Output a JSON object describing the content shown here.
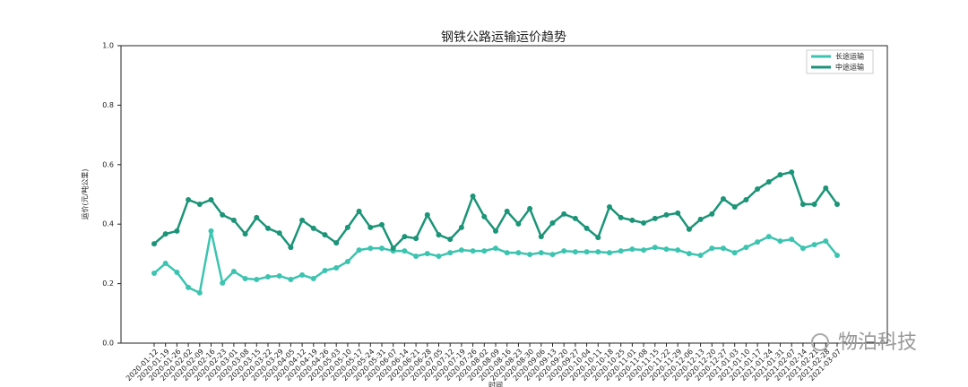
{
  "chart_data": {
    "type": "line",
    "title": "钢铁公路运输运价趋势",
    "xlabel": "时间",
    "ylabel": "运价(元/吨公里)",
    "categories": [
      "2020-01-12",
      "2020-01-19",
      "2020-01-26",
      "2020-02-02",
      "2020-02-09",
      "2020-02-16",
      "2020-02-23",
      "2020-03-01",
      "2020-03-08",
      "2020-03-15",
      "2020-03-22",
      "2020-03-29",
      "2020-04-05",
      "2020-04-12",
      "2020-04-19",
      "2020-04-26",
      "2020-05-03",
      "2020-05-10",
      "2020-05-17",
      "2020-05-24",
      "2020-05-31",
      "2020-06-07",
      "2020-06-14",
      "2020-06-21",
      "2020-06-28",
      "2020-07-05",
      "2020-07-12",
      "2020-07-19",
      "2020-07-26",
      "2020-08-02",
      "2020-08-09",
      "2020-08-16",
      "2020-08-23",
      "2020-08-30",
      "2020-09-06",
      "2020-09-13",
      "2020-09-20",
      "2020-09-27",
      "2020-10-04",
      "2020-10-11",
      "2020-10-18",
      "2020-10-25",
      "2020-11-01",
      "2020-11-08",
      "2020-11-15",
      "2020-11-22",
      "2020-11-29",
      "2020-12-06",
      "2020-12-13",
      "2020-12-20",
      "2020-12-27",
      "2021-01-03",
      "2021-01-10",
      "2021-01-17",
      "2021-01-24",
      "2021-01-31",
      "2021-02-07",
      "2021-02-14",
      "2021-02-21",
      "2021-02-28",
      "2021-03-07"
    ],
    "series": [
      {
        "name": "长途运输",
        "color": "#3cc4b0",
        "values": [
          0.235,
          0.268,
          0.238,
          0.187,
          0.169,
          0.377,
          0.202,
          0.241,
          0.217,
          0.214,
          0.223,
          0.226,
          0.214,
          0.229,
          0.217,
          0.244,
          0.253,
          0.274,
          0.313,
          0.319,
          0.319,
          0.31,
          0.31,
          0.292,
          0.301,
          0.292,
          0.304,
          0.313,
          0.31,
          0.31,
          0.319,
          0.304,
          0.304,
          0.298,
          0.304,
          0.298,
          0.31,
          0.307,
          0.307,
          0.307,
          0.304,
          0.31,
          0.316,
          0.313,
          0.322,
          0.316,
          0.313,
          0.301,
          0.295,
          0.319,
          0.319,
          0.304,
          0.322,
          0.34,
          0.358,
          0.343,
          0.349,
          0.319,
          0.331,
          0.343,
          0.295
        ]
      },
      {
        "name": "中途运输",
        "color": "#1b9477",
        "values": [
          0.334,
          0.367,
          0.377,
          0.482,
          0.467,
          0.482,
          0.431,
          0.413,
          0.367,
          0.422,
          0.386,
          0.37,
          0.322,
          0.413,
          0.386,
          0.364,
          0.337,
          0.389,
          0.443,
          0.389,
          0.398,
          0.319,
          0.358,
          0.352,
          0.431,
          0.364,
          0.349,
          0.389,
          0.494,
          0.425,
          0.377,
          0.443,
          0.401,
          0.452,
          0.358,
          0.404,
          0.434,
          0.419,
          0.386,
          0.355,
          0.458,
          0.422,
          0.413,
          0.404,
          0.419,
          0.431,
          0.437,
          0.383,
          0.416,
          0.434,
          0.485,
          0.458,
          0.482,
          0.518,
          0.542,
          0.566,
          0.575,
          0.467,
          0.467,
          0.521,
          0.467
        ]
      }
    ],
    "ylim": [
      0,
      1
    ],
    "yticks": [
      {
        "value": 0,
        "label": "0.0"
      },
      0.2,
      0.4,
      0.6,
      0.8,
      {
        "value": 1,
        "label": "1.0"
      }
    ],
    "legend": "upper right"
  },
  "watermark": "物泊科技"
}
